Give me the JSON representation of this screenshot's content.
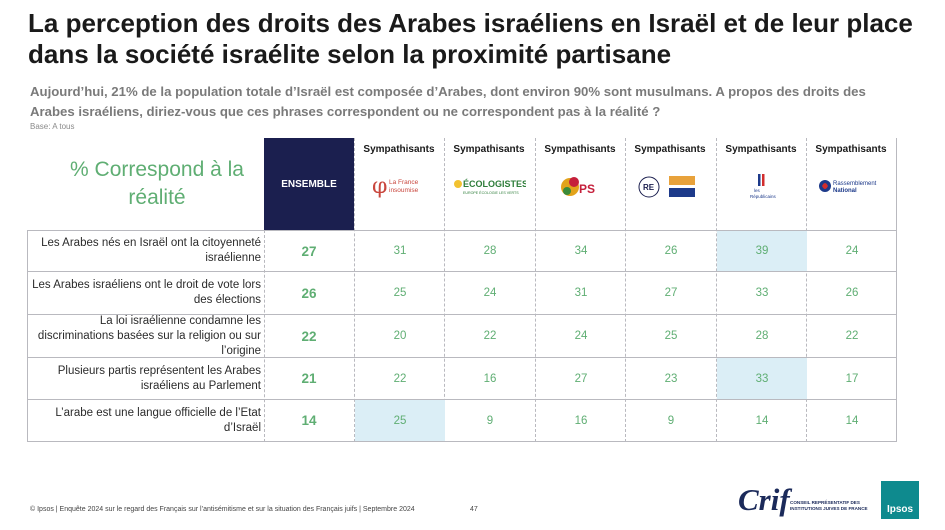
{
  "title": "La perception des droits des Arabes israéliens en Israël et de leur place dans la société israélite selon la proximité partisane",
  "subtitle": "Aujourd’hui, 21% de la population totale d’Israël est composée d’Arabes, dont environ 90% sont musulmans. A propos des droits des Arabes israéliens, diriez-vous que ces phrases correspondent ou ne correspondent pas à la réalité ?",
  "base": "Base: A tous",
  "table": {
    "corner_label": "% Correspond à la réalité",
    "ensemble_label": "ENSEMBLE",
    "parties": [
      {
        "header": "Sympathisants",
        "logo_text": "La France insoumise",
        "logo_icon": "lfi-logo"
      },
      {
        "header": "Sympathisants",
        "logo_text": "ÉCOLOGISTES",
        "logo_sub": "EUROPE ÉCOLOGIE LES VERTS",
        "logo_icon": "eelv-logo"
      },
      {
        "header": "Sympathisants",
        "logo_text": "PS",
        "logo_icon": "ps-logo"
      },
      {
        "header": "Sympathisants",
        "logo_text": "RE",
        "logo_icon": "renaissance-modem-horizons-logo"
      },
      {
        "header": "Sympathisants",
        "logo_text": "LR",
        "logo_sub": "les Républicains",
        "logo_icon": "lr-logo"
      },
      {
        "header": "Sympathisants",
        "logo_text": "Rassemblement National",
        "logo_icon": "rn-logo"
      }
    ],
    "rows": [
      {
        "label": "Les Arabes nés en Israël ont la citoyenneté israélienne",
        "ensemble": "27",
        "values": [
          "31",
          "28",
          "34",
          "26",
          "39",
          "24"
        ],
        "highlight": [
          false,
          false,
          false,
          false,
          true,
          false
        ]
      },
      {
        "label": "Les Arabes israéliens ont le droit de vote lors des élections",
        "ensemble": "26",
        "values": [
          "25",
          "24",
          "31",
          "27",
          "33",
          "26"
        ],
        "highlight": [
          false,
          false,
          false,
          false,
          false,
          false
        ]
      },
      {
        "label": "La loi israélienne condamne les discriminations basées sur la religion ou sur l’origine",
        "ensemble": "22",
        "values": [
          "20",
          "22",
          "24",
          "25",
          "28",
          "22"
        ],
        "highlight": [
          false,
          false,
          false,
          false,
          false,
          false
        ]
      },
      {
        "label": "Plusieurs partis représentent les Arabes israéliens au Parlement",
        "ensemble": "21",
        "values": [
          "22",
          "16",
          "27",
          "23",
          "33",
          "17"
        ],
        "highlight": [
          false,
          false,
          false,
          false,
          true,
          false
        ]
      },
      {
        "label": "L’arabe est une langue officielle de l’Etat d’Israël",
        "ensemble": "14",
        "values": [
          "25",
          "9",
          "16",
          "9",
          "14",
          "14"
        ],
        "highlight": [
          true,
          false,
          false,
          false,
          false,
          false
        ]
      }
    ]
  },
  "footer": {
    "source": "© Ipsos | Enquête 2024 sur le regard des Français sur l’antisémitisme et sur la situation des Français juifs | Septembre 2024",
    "page": "47",
    "crif": "Crif",
    "crif_sub": "CONSEIL REPRÉSENTATIF DES INSTITUTIONS JUIVES DE FRANCE",
    "ipsos": "Ipsos"
  },
  "colors": {
    "navy": "#1b1f4f",
    "green": "#5fae73",
    "highlight": "#dbeef6"
  }
}
